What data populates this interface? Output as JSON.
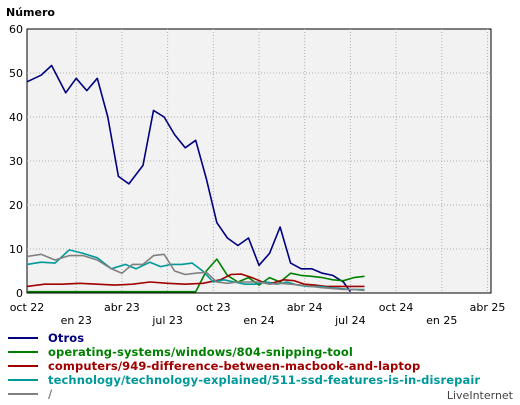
{
  "chart_data": {
    "type": "line",
    "ylabel": "Número",
    "ylim": [
      0,
      60
    ],
    "yticks": [
      0,
      10,
      20,
      30,
      40,
      50,
      60
    ],
    "grid": true,
    "legend_position": "bottom",
    "x_tick_labels": [
      "oct 22",
      "en 23",
      "abr 23",
      "jul 23",
      "oct 23",
      "en 24",
      "abr 24",
      "jul 24",
      "oct 24",
      "en 25",
      "abr 25"
    ],
    "x_tick_label_row": [
      "top",
      "bottom",
      "top",
      "bottom",
      "top",
      "bottom",
      "top",
      "bottom",
      "top",
      "bottom",
      "top"
    ],
    "x_tick_week": [
      0,
      14,
      27,
      40,
      53,
      66,
      79,
      92,
      105,
      118,
      131
    ],
    "x_max_week": 132,
    "series": [
      {
        "name": "Otros",
        "color": "#000080",
        "points": [
          [
            0,
            48
          ],
          [
            4,
            49.5
          ],
          [
            7,
            51.7
          ],
          [
            11,
            45.5
          ],
          [
            14,
            48.8
          ],
          [
            17,
            46
          ],
          [
            20,
            48.8
          ],
          [
            23,
            40
          ],
          [
            26,
            26.5
          ],
          [
            29,
            24.8
          ],
          [
            33,
            29
          ],
          [
            36,
            41.5
          ],
          [
            39,
            40
          ],
          [
            42,
            36
          ],
          [
            45,
            33
          ],
          [
            48,
            34.7
          ],
          [
            51,
            26
          ],
          [
            54,
            16
          ],
          [
            57,
            12.5
          ],
          [
            60,
            10.8
          ],
          [
            63,
            12.5
          ],
          [
            66,
            6.3
          ],
          [
            69,
            9
          ],
          [
            72,
            15
          ],
          [
            75,
            6.8
          ],
          [
            78,
            5.5
          ],
          [
            81,
            5.5
          ],
          [
            84,
            4.5
          ],
          [
            87,
            4
          ],
          [
            90,
            2.5
          ],
          [
            92,
            0.3
          ]
        ]
      },
      {
        "name": "operating-systems/windows/804-snipping-tool",
        "color": "#008000",
        "points": [
          [
            0,
            0.3
          ],
          [
            48,
            0.3
          ],
          [
            51,
            5
          ],
          [
            54,
            7.7
          ],
          [
            57,
            4
          ],
          [
            60,
            2.5
          ],
          [
            63,
            3.5
          ],
          [
            66,
            1.8
          ],
          [
            69,
            3.5
          ],
          [
            72,
            2.5
          ],
          [
            75,
            4.5
          ],
          [
            78,
            4
          ],
          [
            81,
            3.8
          ],
          [
            84,
            3.5
          ],
          [
            87,
            3
          ],
          [
            90,
            2.8
          ],
          [
            93,
            3.5
          ],
          [
            96,
            3.8
          ]
        ]
      },
      {
        "name": "computers/949-difference-between-macbook-and-laptop",
        "color": "#a00000",
        "points": [
          [
            0,
            1.5
          ],
          [
            5,
            2
          ],
          [
            10,
            2
          ],
          [
            15,
            2.2
          ],
          [
            20,
            2
          ],
          [
            25,
            1.8
          ],
          [
            30,
            2
          ],
          [
            35,
            2.5
          ],
          [
            40,
            2.2
          ],
          [
            45,
            2
          ],
          [
            50,
            2.2
          ],
          [
            55,
            3
          ],
          [
            58,
            4.2
          ],
          [
            61,
            4.3
          ],
          [
            64,
            3.5
          ],
          [
            67,
            2.5
          ],
          [
            70,
            2.3
          ],
          [
            73,
            3
          ],
          [
            76,
            2.8
          ],
          [
            79,
            2
          ],
          [
            82,
            1.8
          ],
          [
            85,
            1.5
          ],
          [
            88,
            1.5
          ],
          [
            92,
            1.5
          ],
          [
            96,
            1.5
          ]
        ]
      },
      {
        "name": "technology/technology-explained/511-ssd-features-is-in-disrepair",
        "color": "#009999",
        "points": [
          [
            0,
            6.5
          ],
          [
            4,
            7
          ],
          [
            8,
            6.8
          ],
          [
            12,
            9.8
          ],
          [
            16,
            9
          ],
          [
            20,
            8
          ],
          [
            24,
            5.5
          ],
          [
            28,
            6.5
          ],
          [
            31,
            5.5
          ],
          [
            35,
            7
          ],
          [
            38,
            6
          ],
          [
            41,
            6.5
          ],
          [
            44,
            6.5
          ],
          [
            47,
            6.8
          ],
          [
            50,
            5
          ],
          [
            53,
            2.5
          ],
          [
            56,
            3
          ],
          [
            59,
            2.5
          ],
          [
            62,
            2
          ],
          [
            65,
            2
          ],
          [
            68,
            2.5
          ],
          [
            71,
            2
          ],
          [
            74,
            2.5
          ],
          [
            77,
            1.8
          ],
          [
            80,
            1.5
          ],
          [
            83,
            1.5
          ],
          [
            86,
            1.2
          ],
          [
            89,
            1
          ],
          [
            92,
            0.8
          ],
          [
            96,
            0.8
          ]
        ]
      },
      {
        "name": "/",
        "color": "#808080",
        "points": [
          [
            0,
            8.3
          ],
          [
            4,
            8.8
          ],
          [
            8,
            7.5
          ],
          [
            12,
            8.5
          ],
          [
            16,
            8.5
          ],
          [
            20,
            7.5
          ],
          [
            24,
            5.5
          ],
          [
            27,
            4.5
          ],
          [
            30,
            6.5
          ],
          [
            33,
            6.5
          ],
          [
            36,
            8.5
          ],
          [
            39,
            8.8
          ],
          [
            42,
            5
          ],
          [
            45,
            4.2
          ],
          [
            48,
            4.5
          ],
          [
            51,
            4.7
          ],
          [
            54,
            2.5
          ],
          [
            57,
            2.2
          ],
          [
            60,
            2.5
          ],
          [
            63,
            2.5
          ],
          [
            66,
            2.5
          ],
          [
            69,
            2
          ],
          [
            72,
            2.2
          ],
          [
            75,
            2
          ],
          [
            78,
            1.8
          ],
          [
            81,
            1.5
          ],
          [
            84,
            1.2
          ],
          [
            87,
            1
          ],
          [
            90,
            0.8
          ],
          [
            93,
            0.8
          ],
          [
            96,
            0.6
          ]
        ]
      }
    ]
  },
  "footer": {
    "brand": "LiveInternet"
  }
}
